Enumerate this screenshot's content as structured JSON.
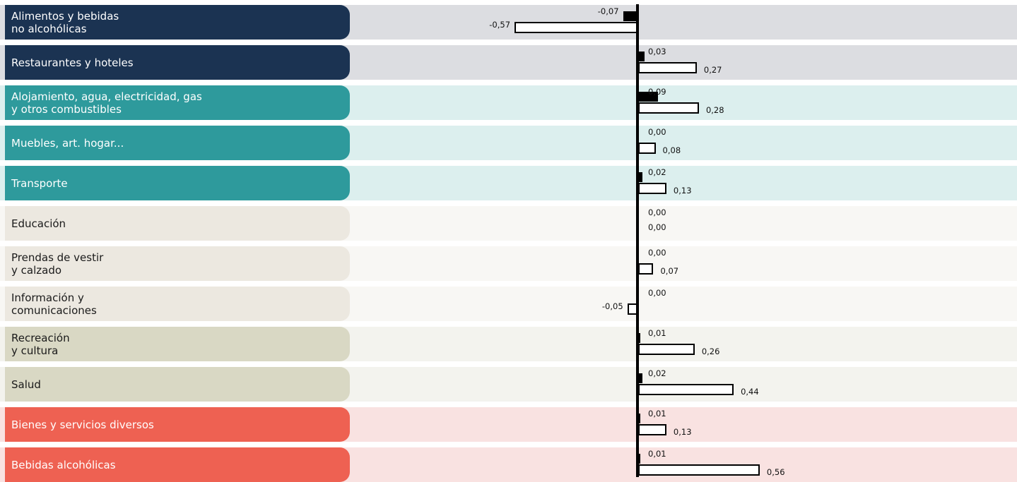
{
  "chart_data": {
    "type": "bar",
    "orientation": "horizontal",
    "categories": [
      "Alimentos y bebidas\nno alcohólicas",
      "Restaurantes y hoteles",
      "Alojamiento, agua, electricidad, gas\ny otros combustibles",
      "Muebles, art. hogar...",
      "Transporte",
      "Educación",
      "Prendas de vestir\ny calzado",
      "Información y\ncomunicaciones",
      "Recreación\ny cultura",
      "Salud",
      "Bienes y servicios diversos",
      "Bebidas alcohólicas"
    ],
    "series": [
      {
        "style": "solid",
        "values": [
          -0.07,
          0.03,
          0.09,
          0.0,
          0.02,
          0.0,
          0.0,
          0.0,
          0.01,
          0.02,
          0.01,
          0.01
        ],
        "labels": [
          "-0,07",
          "0,03",
          "0,09",
          "0,00",
          "0,02",
          "0,00",
          "0,00",
          "0,00",
          "0,01",
          "0,02",
          "0,01",
          "0,01"
        ]
      },
      {
        "style": "outline",
        "values": [
          -0.57,
          0.27,
          0.28,
          0.08,
          0.13,
          0.0,
          0.07,
          -0.05,
          0.26,
          0.44,
          0.13,
          0.56
        ],
        "labels": [
          "-0,57",
          "0,27",
          "0,28",
          "0,08",
          "0,13",
          "0,00",
          "0,07",
          "-0,05",
          "0,26",
          "0,44",
          "0,13",
          "0,56"
        ]
      }
    ],
    "groups": [
      {
        "pill_color": "#1b3352",
        "band_color": "#dcdde1",
        "text_color": "#ffffff"
      },
      {
        "pill_color": "#1b3352",
        "band_color": "#dcdde1",
        "text_color": "#ffffff"
      },
      {
        "pill_color": "#2e9a9c",
        "band_color": "#dcefee",
        "text_color": "#ffffff"
      },
      {
        "pill_color": "#2e9a9c",
        "band_color": "#dcefee",
        "text_color": "#ffffff"
      },
      {
        "pill_color": "#2e9a9c",
        "band_color": "#dcefee",
        "text_color": "#ffffff"
      },
      {
        "pill_color": "#ece8e0",
        "band_color": "#f8f7f4",
        "text_color": "#1a1a1a"
      },
      {
        "pill_color": "#ece8e0",
        "band_color": "#f8f7f4",
        "text_color": "#1a1a1a"
      },
      {
        "pill_color": "#ece8e0",
        "band_color": "#f8f7f4",
        "text_color": "#1a1a1a"
      },
      {
        "pill_color": "#d9d8c4",
        "band_color": "#f3f3ee",
        "text_color": "#1a1a1a"
      },
      {
        "pill_color": "#d9d8c4",
        "band_color": "#f3f3ee",
        "text_color": "#1a1a1a"
      },
      {
        "pill_color": "#ee6152",
        "band_color": "#f9e2e1",
        "text_color": "#ffffff"
      },
      {
        "pill_color": "#ee6152",
        "band_color": "#f9e2e1",
        "text_color": "#ffffff"
      }
    ],
    "xlim": [
      -0.6,
      0.6
    ],
    "zero_line": true,
    "grid": false
  }
}
